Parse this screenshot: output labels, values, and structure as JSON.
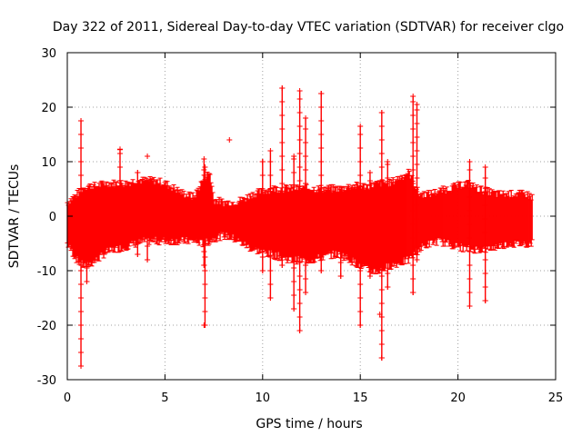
{
  "chart_data": {
    "type": "scatter",
    "title": "Day 322 of 2011, Sidereal Day-to-day VTEC variation (SDTVAR) for receiver clgo",
    "xlabel": "GPS time / hours",
    "ylabel": "SDTVAR / TECUs",
    "xlim": [
      0,
      25
    ],
    "ylim": [
      -30,
      30
    ],
    "xticks": [
      0,
      5,
      10,
      15,
      20,
      25
    ],
    "yticks": [
      -30,
      -20,
      -10,
      0,
      10,
      20,
      30
    ],
    "xtick_labels": [
      "0",
      "5",
      "10",
      "15",
      "20",
      "25"
    ],
    "ytick_labels": [
      "-30",
      "-20",
      "-10",
      "0",
      "10",
      "20",
      "30"
    ],
    "grid": true,
    "marker": "+",
    "color": "#ff0000",
    "series": [
      {
        "name": "SDTVAR",
        "envelope": {
          "x": [
            0.0,
            0.5,
            0.8,
            1.0,
            1.5,
            2.0,
            2.5,
            3.0,
            3.5,
            4.0,
            4.5,
            5.0,
            5.5,
            6.0,
            6.5,
            7.0,
            7.3,
            7.5,
            8.0,
            8.5,
            9.0,
            9.5,
            10.0,
            10.5,
            11.0,
            11.5,
            12.0,
            12.5,
            13.0,
            13.5,
            14.0,
            14.5,
            15.0,
            15.5,
            16.0,
            16.5,
            17.0,
            17.5,
            18.0,
            18.5,
            19.0,
            19.5,
            20.0,
            20.5,
            21.0,
            21.5,
            22.0,
            22.5,
            23.0,
            23.5,
            23.8
          ],
          "upper": [
            2.5,
            4.0,
            5.0,
            5.5,
            5.5,
            6.0,
            6.0,
            6.0,
            6.5,
            6.5,
            6.5,
            6.0,
            5.0,
            4.0,
            3.5,
            7.0,
            8.0,
            3.0,
            2.5,
            2.5,
            3.0,
            4.0,
            4.5,
            5.0,
            5.0,
            5.0,
            5.0,
            5.0,
            5.0,
            5.0,
            5.0,
            5.5,
            5.5,
            5.5,
            6.0,
            6.0,
            7.0,
            8.0,
            4.0,
            4.0,
            4.5,
            5.0,
            5.5,
            6.0,
            5.0,
            4.5,
            4.0,
            4.0,
            4.0,
            4.0,
            3.5
          ],
          "lower": [
            -5.0,
            -8.0,
            -9.0,
            -9.0,
            -8.0,
            -6.5,
            -6.0,
            -5.5,
            -5.0,
            -4.5,
            -4.5,
            -4.5,
            -4.5,
            -4.5,
            -4.5,
            -5.0,
            -4.5,
            -4.0,
            -3.5,
            -4.0,
            -5.0,
            -6.0,
            -6.5,
            -7.0,
            -7.5,
            -8.0,
            -8.0,
            -8.0,
            -7.5,
            -7.0,
            -7.0,
            -8.0,
            -9.0,
            -10.0,
            -10.0,
            -9.0,
            -8.5,
            -8.0,
            -6.0,
            -5.0,
            -4.5,
            -5.0,
            -5.5,
            -6.0,
            -6.0,
            -6.0,
            -5.5,
            -5.0,
            -5.0,
            -5.0,
            -5.0
          ]
        },
        "spikes": [
          {
            "x": 0.7,
            "min": -27.5,
            "max": 17.5
          },
          {
            "x": 1.0,
            "min": -12.0,
            "max": 4.0
          },
          {
            "x": 2.7,
            "min": -1.0,
            "max": 12.3
          },
          {
            "x": 3.6,
            "min": -7.0,
            "max": 8.0
          },
          {
            "x": 4.1,
            "min": -8.0,
            "max": 1.0
          },
          {
            "x": 7.0,
            "min": -9.0,
            "max": 10.5
          },
          {
            "x": 7.05,
            "min": -20.0,
            "max": 9.0
          },
          {
            "x": 10.0,
            "min": -10.0,
            "max": 10.0
          },
          {
            "x": 10.4,
            "min": -15.0,
            "max": 12.0
          },
          {
            "x": 11.0,
            "min": -9.0,
            "max": 23.5
          },
          {
            "x": 11.6,
            "min": -17.0,
            "max": 11.0
          },
          {
            "x": 11.9,
            "min": -21.0,
            "max": 23.0
          },
          {
            "x": 12.2,
            "min": -14.0,
            "max": 18.0
          },
          {
            "x": 13.0,
            "min": -10.0,
            "max": 22.5
          },
          {
            "x": 14.0,
            "min": -11.0,
            "max": 3.0
          },
          {
            "x": 15.0,
            "min": -20.0,
            "max": 16.5
          },
          {
            "x": 15.5,
            "min": -11.0,
            "max": 8.0
          },
          {
            "x": 16.1,
            "min": -26.0,
            "max": 19.0
          },
          {
            "x": 16.4,
            "min": -13.0,
            "max": 10.0
          },
          {
            "x": 17.7,
            "min": -14.0,
            "max": 22.0
          },
          {
            "x": 17.9,
            "min": -8.0,
            "max": 20.5
          },
          {
            "x": 20.6,
            "min": -16.5,
            "max": 10.0
          },
          {
            "x": 21.4,
            "min": -15.5,
            "max": 9.0
          }
        ],
        "outliers": [
          {
            "x": 2.7,
            "y": 12.2
          },
          {
            "x": 4.1,
            "y": 11.0
          },
          {
            "x": 8.3,
            "y": 14.0
          },
          {
            "x": 10.0,
            "y": 10.0
          },
          {
            "x": 7.0,
            "y": -20.0
          },
          {
            "x": 16.0,
            "y": -18.0
          },
          {
            "x": 16.1,
            "y": -26.0
          },
          {
            "x": 17.7,
            "y": -14.0
          },
          {
            "x": 20.6,
            "y": -16.5
          },
          {
            "x": 21.4,
            "y": -15.5
          },
          {
            "x": 13.0,
            "y": 22.5
          }
        ]
      }
    ]
  }
}
